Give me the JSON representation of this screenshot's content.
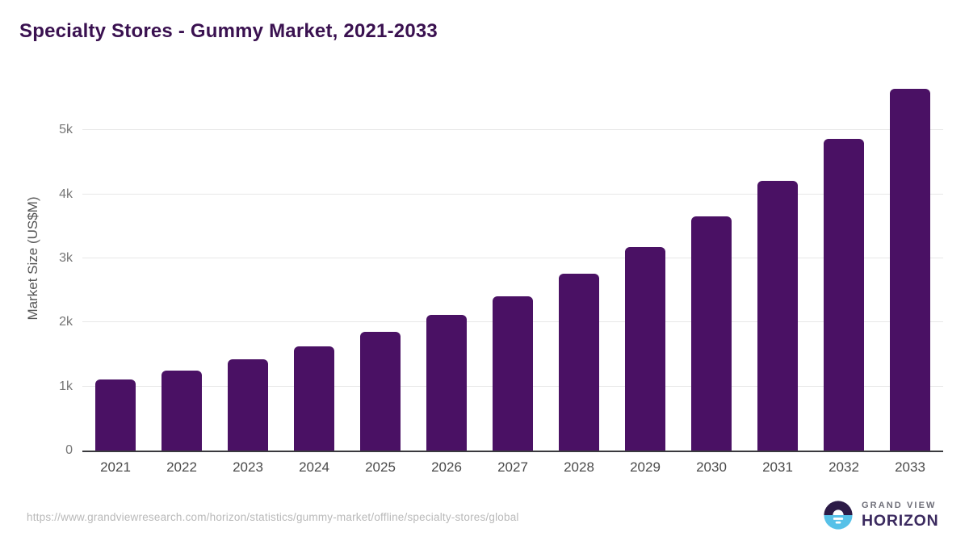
{
  "chart_data": {
    "type": "bar",
    "title": "Specialty Stores - Gummy Market, 2021-2033",
    "categories": [
      "2021",
      "2022",
      "2023",
      "2024",
      "2025",
      "2026",
      "2027",
      "2028",
      "2029",
      "2030",
      "2031",
      "2032",
      "2033"
    ],
    "values": [
      1110,
      1253,
      1420,
      1627,
      1855,
      2117,
      2413,
      2765,
      3182,
      3660,
      4215,
      4870,
      5655
    ],
    "xlabel": "",
    "ylabel": "Market Size (US$M)",
    "yticks": [
      {
        "label": "0",
        "value": 0
      },
      {
        "label": "1k",
        "value": 1000
      },
      {
        "label": "2k",
        "value": 2000
      },
      {
        "label": "3k",
        "value": 3000
      },
      {
        "label": "4k",
        "value": 4000
      },
      {
        "label": "5k",
        "value": 5000
      }
    ],
    "ylim": [
      0,
      5800
    ],
    "grid": true,
    "legend": false,
    "bar_color": "#4a1164"
  },
  "footer": {
    "source_url": "https://www.grandviewresearch.com/horizon/statistics/gummy-market/offline/specialty-stores/global",
    "logo": {
      "line1": "GRAND VIEW",
      "line2": "HORIZON"
    }
  },
  "colors": {
    "title": "#3a1150",
    "bar": "#4a1164",
    "gridline": "#e8e8e8",
    "axis_line": "#3a3a3e",
    "y_tick": "#757575",
    "x_tick": "#4a4a4a",
    "url": "#b9b9b9",
    "logo_purple": "#2c1b47",
    "logo_blue": "#57c1e8",
    "logo_text": "#3b2a5f"
  }
}
